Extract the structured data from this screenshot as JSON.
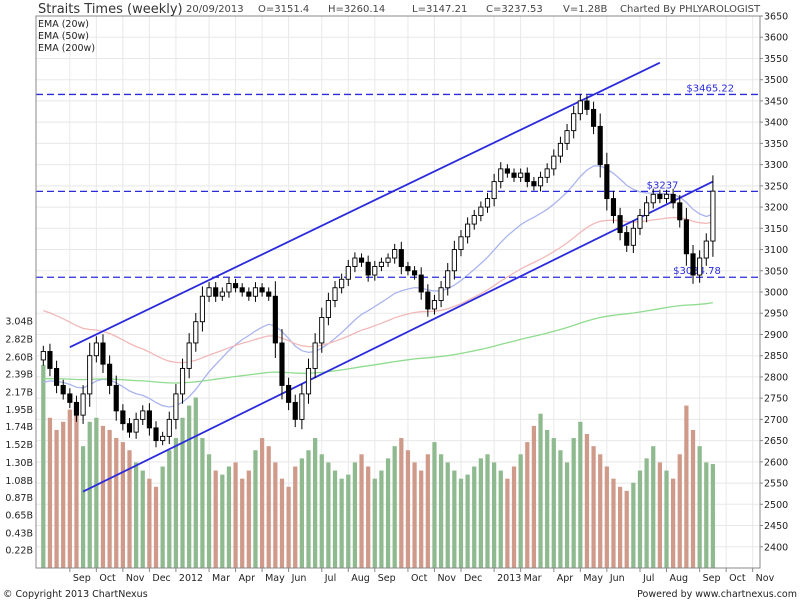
{
  "header": {
    "title": "Straits Times (weekly)",
    "date": "20/09/2013",
    "open": "O=3151.4",
    "high": "H=3260.14",
    "low": "L=3147.21",
    "close": "C=3237.53",
    "volume": "V=1.28B",
    "credit": "Charted By PHLYAROLOGIST"
  },
  "footer": {
    "copyright": "© Copyright 2013 ChartNexus",
    "powered": "Powered by www.chartnexus.com"
  },
  "colors": {
    "trendline": "#2b2bdd",
    "ema20": "#aab4ee",
    "ema50": "#f2b8b8",
    "ema200": "#8fdc8f",
    "vol_up": "#8fba8f",
    "vol_down": "#cf9a8a",
    "candle": "#000000",
    "grid": "#e8e8e8"
  },
  "chart_data": {
    "type": "candlestick",
    "timeframe": "weekly",
    "price_axis": {
      "min": 2350,
      "max": 3650,
      "ticks": [
        2400,
        2450,
        2500,
        2550,
        2600,
        2650,
        2700,
        2750,
        2800,
        2850,
        2900,
        2950,
        3000,
        3050,
        3100,
        3150,
        3200,
        3250,
        3300,
        3350,
        3400,
        3450,
        3500,
        3550,
        3600,
        3650
      ]
    },
    "volume_axis": {
      "ticks": [
        "0.22B",
        "0.43B",
        "0.65B",
        "0.87B",
        "1.08B",
        "1.30B",
        "1.52B",
        "1.74B",
        "1.95B",
        "2.17B",
        "2.39B",
        "2.60B",
        "2.82B",
        "3.04B"
      ],
      "values": [
        0.22,
        0.43,
        0.65,
        0.87,
        1.08,
        1.3,
        1.52,
        1.74,
        1.95,
        2.17,
        2.39,
        2.6,
        2.82,
        3.04
      ]
    },
    "x_labels": [
      "Sep",
      "Oct",
      "Nov",
      "Dec",
      "2012",
      "Mar",
      "Apr",
      "May",
      "Jun",
      "Jul",
      "Aug",
      "Sep",
      "Oct",
      "Nov",
      "Dec",
      "2013",
      "Mar",
      "Apr",
      "May",
      "Jun",
      "Jul",
      "Aug",
      "Sep",
      "Oct",
      "Nov"
    ],
    "x_label_weeks": [
      4,
      8,
      12,
      16,
      20,
      25,
      29,
      33,
      37,
      42,
      46,
      50,
      55,
      59,
      63,
      68,
      72,
      77,
      81,
      85,
      90,
      94,
      99,
      103,
      107
    ],
    "legend": [
      {
        "name": "EMA (20w)",
        "color": "#aab4ee"
      },
      {
        "name": "EMA (50w)",
        "color": "#f2b8b8"
      },
      {
        "name": "EMA (200w)",
        "color": "#8fdc8f"
      }
    ],
    "levels": [
      {
        "value": 3465.22,
        "label": "$3465.22",
        "label_week": 97
      },
      {
        "value": 3237,
        "label": "$3237",
        "label_week": 91
      },
      {
        "value": 3034.78,
        "label": "$3034.78",
        "label_week": 95
      }
    ],
    "channel_upper": {
      "from": [
        4,
        2870
      ],
      "to": [
        93,
        3540
      ]
    },
    "channel_lower": {
      "from": [
        6,
        2530
      ],
      "to": [
        101,
        3260
      ]
    },
    "closes": [
      2860,
      2820,
      2780,
      2760,
      2740,
      2710,
      2760,
      2850,
      2880,
      2830,
      2780,
      2720,
      2690,
      2670,
      2700,
      2720,
      2680,
      2650,
      2660,
      2700,
      2760,
      2820,
      2880,
      2930,
      2990,
      3010,
      2990,
      3000,
      3020,
      3010,
      3000,
      2990,
      3010,
      3000,
      2990,
      2880,
      2780,
      2740,
      2700,
      2760,
      2820,
      2880,
      2940,
      2980,
      3010,
      3030,
      3060,
      3080,
      3070,
      3040,
      3060,
      3070,
      3080,
      3100,
      3060,
      3050,
      3040,
      3000,
      2960,
      2980,
      3010,
      3050,
      3100,
      3130,
      3160,
      3180,
      3200,
      3220,
      3260,
      3290,
      3280,
      3270,
      3280,
      3260,
      3250,
      3270,
      3290,
      3320,
      3350,
      3380,
      3420,
      3450,
      3430,
      3390,
      3300,
      3220,
      3180,
      3140,
      3110,
      3150,
      3180,
      3210,
      3230,
      3220,
      3230,
      3210,
      3170,
      3090,
      3040,
      3080,
      3120,
      3237.53
    ],
    "volumes": [
      2.5,
      1.85,
      1.7,
      1.8,
      1.95,
      1.9,
      1.5,
      1.8,
      1.85,
      1.75,
      1.7,
      1.6,
      1.55,
      1.45,
      1.3,
      1.2,
      1.1,
      1.0,
      1.25,
      1.45,
      1.6,
      1.85,
      2.0,
      2.1,
      1.6,
      1.4,
      1.2,
      1.15,
      1.25,
      1.3,
      1.1,
      1.2,
      1.45,
      1.6,
      1.5,
      1.3,
      1.1,
      1.0,
      1.25,
      1.35,
      1.45,
      1.6,
      1.4,
      1.3,
      1.2,
      1.1,
      1.15,
      1.3,
      1.4,
      1.25,
      1.1,
      1.2,
      1.35,
      1.5,
      1.6,
      1.45,
      1.3,
      1.2,
      1.4,
      1.55,
      1.4,
      1.3,
      1.2,
      1.1,
      1.15,
      1.25,
      1.35,
      1.4,
      1.3,
      1.2,
      1.1,
      1.25,
      1.4,
      1.55,
      1.75,
      1.9,
      1.7,
      1.6,
      1.45,
      1.3,
      1.6,
      1.8,
      1.65,
      1.5,
      1.4,
      1.25,
      1.1,
      1.0,
      0.95,
      1.05,
      1.2,
      1.35,
      1.5,
      1.3,
      1.2,
      1.1,
      1.4,
      2.0,
      1.7,
      1.5,
      1.3,
      1.28
    ]
  }
}
